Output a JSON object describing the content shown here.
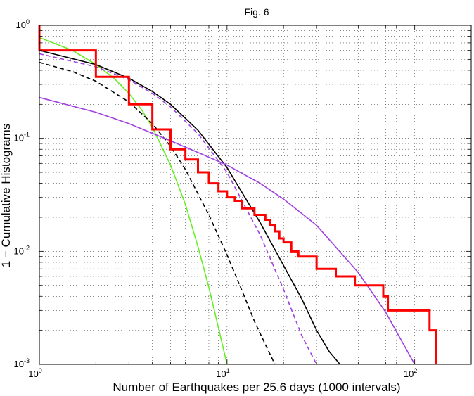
{
  "chart_data": {
    "type": "line",
    "title": "Fig. 6",
    "xlabel": "Number of Earthquakes per 25.6 days (1000 intervals)",
    "ylabel": "1 − Cumulative Histograms",
    "x_scale": "log",
    "y_scale": "log",
    "xlim": [
      1,
      200
    ],
    "ylim": [
      0.001,
      1
    ],
    "grid": true,
    "grid_style": "dotted",
    "x_ticks": [
      {
        "base": "10",
        "exp": "0",
        "value": 1
      },
      {
        "base": "10",
        "exp": "1",
        "value": 10
      },
      {
        "base": "10",
        "exp": "2",
        "value": 100
      }
    ],
    "y_ticks": [
      {
        "base": "10",
        "exp": "-3",
        "value": 0.001
      },
      {
        "base": "10",
        "exp": "-2",
        "value": 0.01
      },
      {
        "base": "10",
        "exp": "-1",
        "value": 0.1
      },
      {
        "base": "10",
        "exp": "0",
        "value": 1
      }
    ],
    "series": [
      {
        "color": "#66ee22",
        "dash": "solid",
        "width": 1.6,
        "x": [
          1,
          1.5,
          2,
          2.5,
          3,
          3.5,
          4,
          5,
          6,
          7,
          8,
          9,
          10
        ],
        "y": [
          0.78,
          0.6,
          0.45,
          0.34,
          0.25,
          0.18,
          0.125,
          0.058,
          0.026,
          0.011,
          0.0048,
          0.0021,
          0.001
        ]
      },
      {
        "color": "#000000",
        "dash": "dashed",
        "width": 1.6,
        "x": [
          1,
          1.5,
          2,
          3,
          4,
          5,
          6,
          8,
          10,
          12,
          14,
          16,
          18
        ],
        "y": [
          0.47,
          0.39,
          0.32,
          0.21,
          0.135,
          0.085,
          0.053,
          0.021,
          0.0093,
          0.0045,
          0.0024,
          0.0015,
          0.001
        ]
      },
      {
        "color": "#000000",
        "dash": "solid",
        "width": 1.6,
        "x": [
          1,
          2,
          3,
          4,
          5,
          7,
          10,
          15,
          20,
          25,
          30,
          35,
          40
        ],
        "y": [
          0.6,
          0.45,
          0.34,
          0.26,
          0.2,
          0.118,
          0.055,
          0.018,
          0.0075,
          0.0038,
          0.002,
          0.0013,
          0.001
        ]
      },
      {
        "color": "#a040e0",
        "dash": "dashed",
        "width": 1.6,
        "x": [
          1,
          2,
          3,
          4,
          5,
          7,
          10,
          15,
          20,
          25,
          30
        ],
        "y": [
          0.56,
          0.43,
          0.33,
          0.25,
          0.19,
          0.11,
          0.05,
          0.014,
          0.0046,
          0.0018,
          0.001
        ]
      },
      {
        "color": "#a040e0",
        "dash": "solid",
        "width": 1.6,
        "x": [
          1,
          2,
          3,
          5,
          7,
          10,
          15,
          20,
          30,
          50,
          70,
          100
        ],
        "y": [
          0.23,
          0.17,
          0.135,
          0.095,
          0.075,
          0.058,
          0.04,
          0.029,
          0.017,
          0.0065,
          0.0029,
          0.001
        ]
      },
      {
        "color": "#ff0000",
        "dash": "solid",
        "width": 3,
        "step": true,
        "x": [
          1,
          1,
          2,
          2,
          3,
          3,
          4,
          4,
          5,
          5,
          6,
          6,
          7,
          7,
          8,
          8,
          9,
          9,
          10,
          10,
          11,
          11,
          12,
          12,
          14,
          14,
          16,
          16,
          17,
          17,
          18,
          18,
          19,
          19,
          20,
          20,
          22,
          22,
          24,
          24,
          30,
          30,
          38,
          38,
          48,
          48,
          68,
          68,
          72,
          72,
          120,
          120,
          130,
          130
        ],
        "y": [
          1,
          0.6,
          0.6,
          0.35,
          0.35,
          0.2,
          0.2,
          0.12,
          0.12,
          0.08,
          0.08,
          0.065,
          0.065,
          0.05,
          0.05,
          0.04,
          0.04,
          0.034,
          0.034,
          0.03,
          0.03,
          0.028,
          0.028,
          0.024,
          0.024,
          0.021,
          0.021,
          0.019,
          0.019,
          0.017,
          0.017,
          0.015,
          0.015,
          0.013,
          0.013,
          0.012,
          0.012,
          0.01,
          0.01,
          0.009,
          0.009,
          0.007,
          0.007,
          0.006,
          0.006,
          0.005,
          0.005,
          0.004,
          0.004,
          0.003,
          0.003,
          0.002,
          0.002,
          0.001
        ]
      }
    ]
  }
}
